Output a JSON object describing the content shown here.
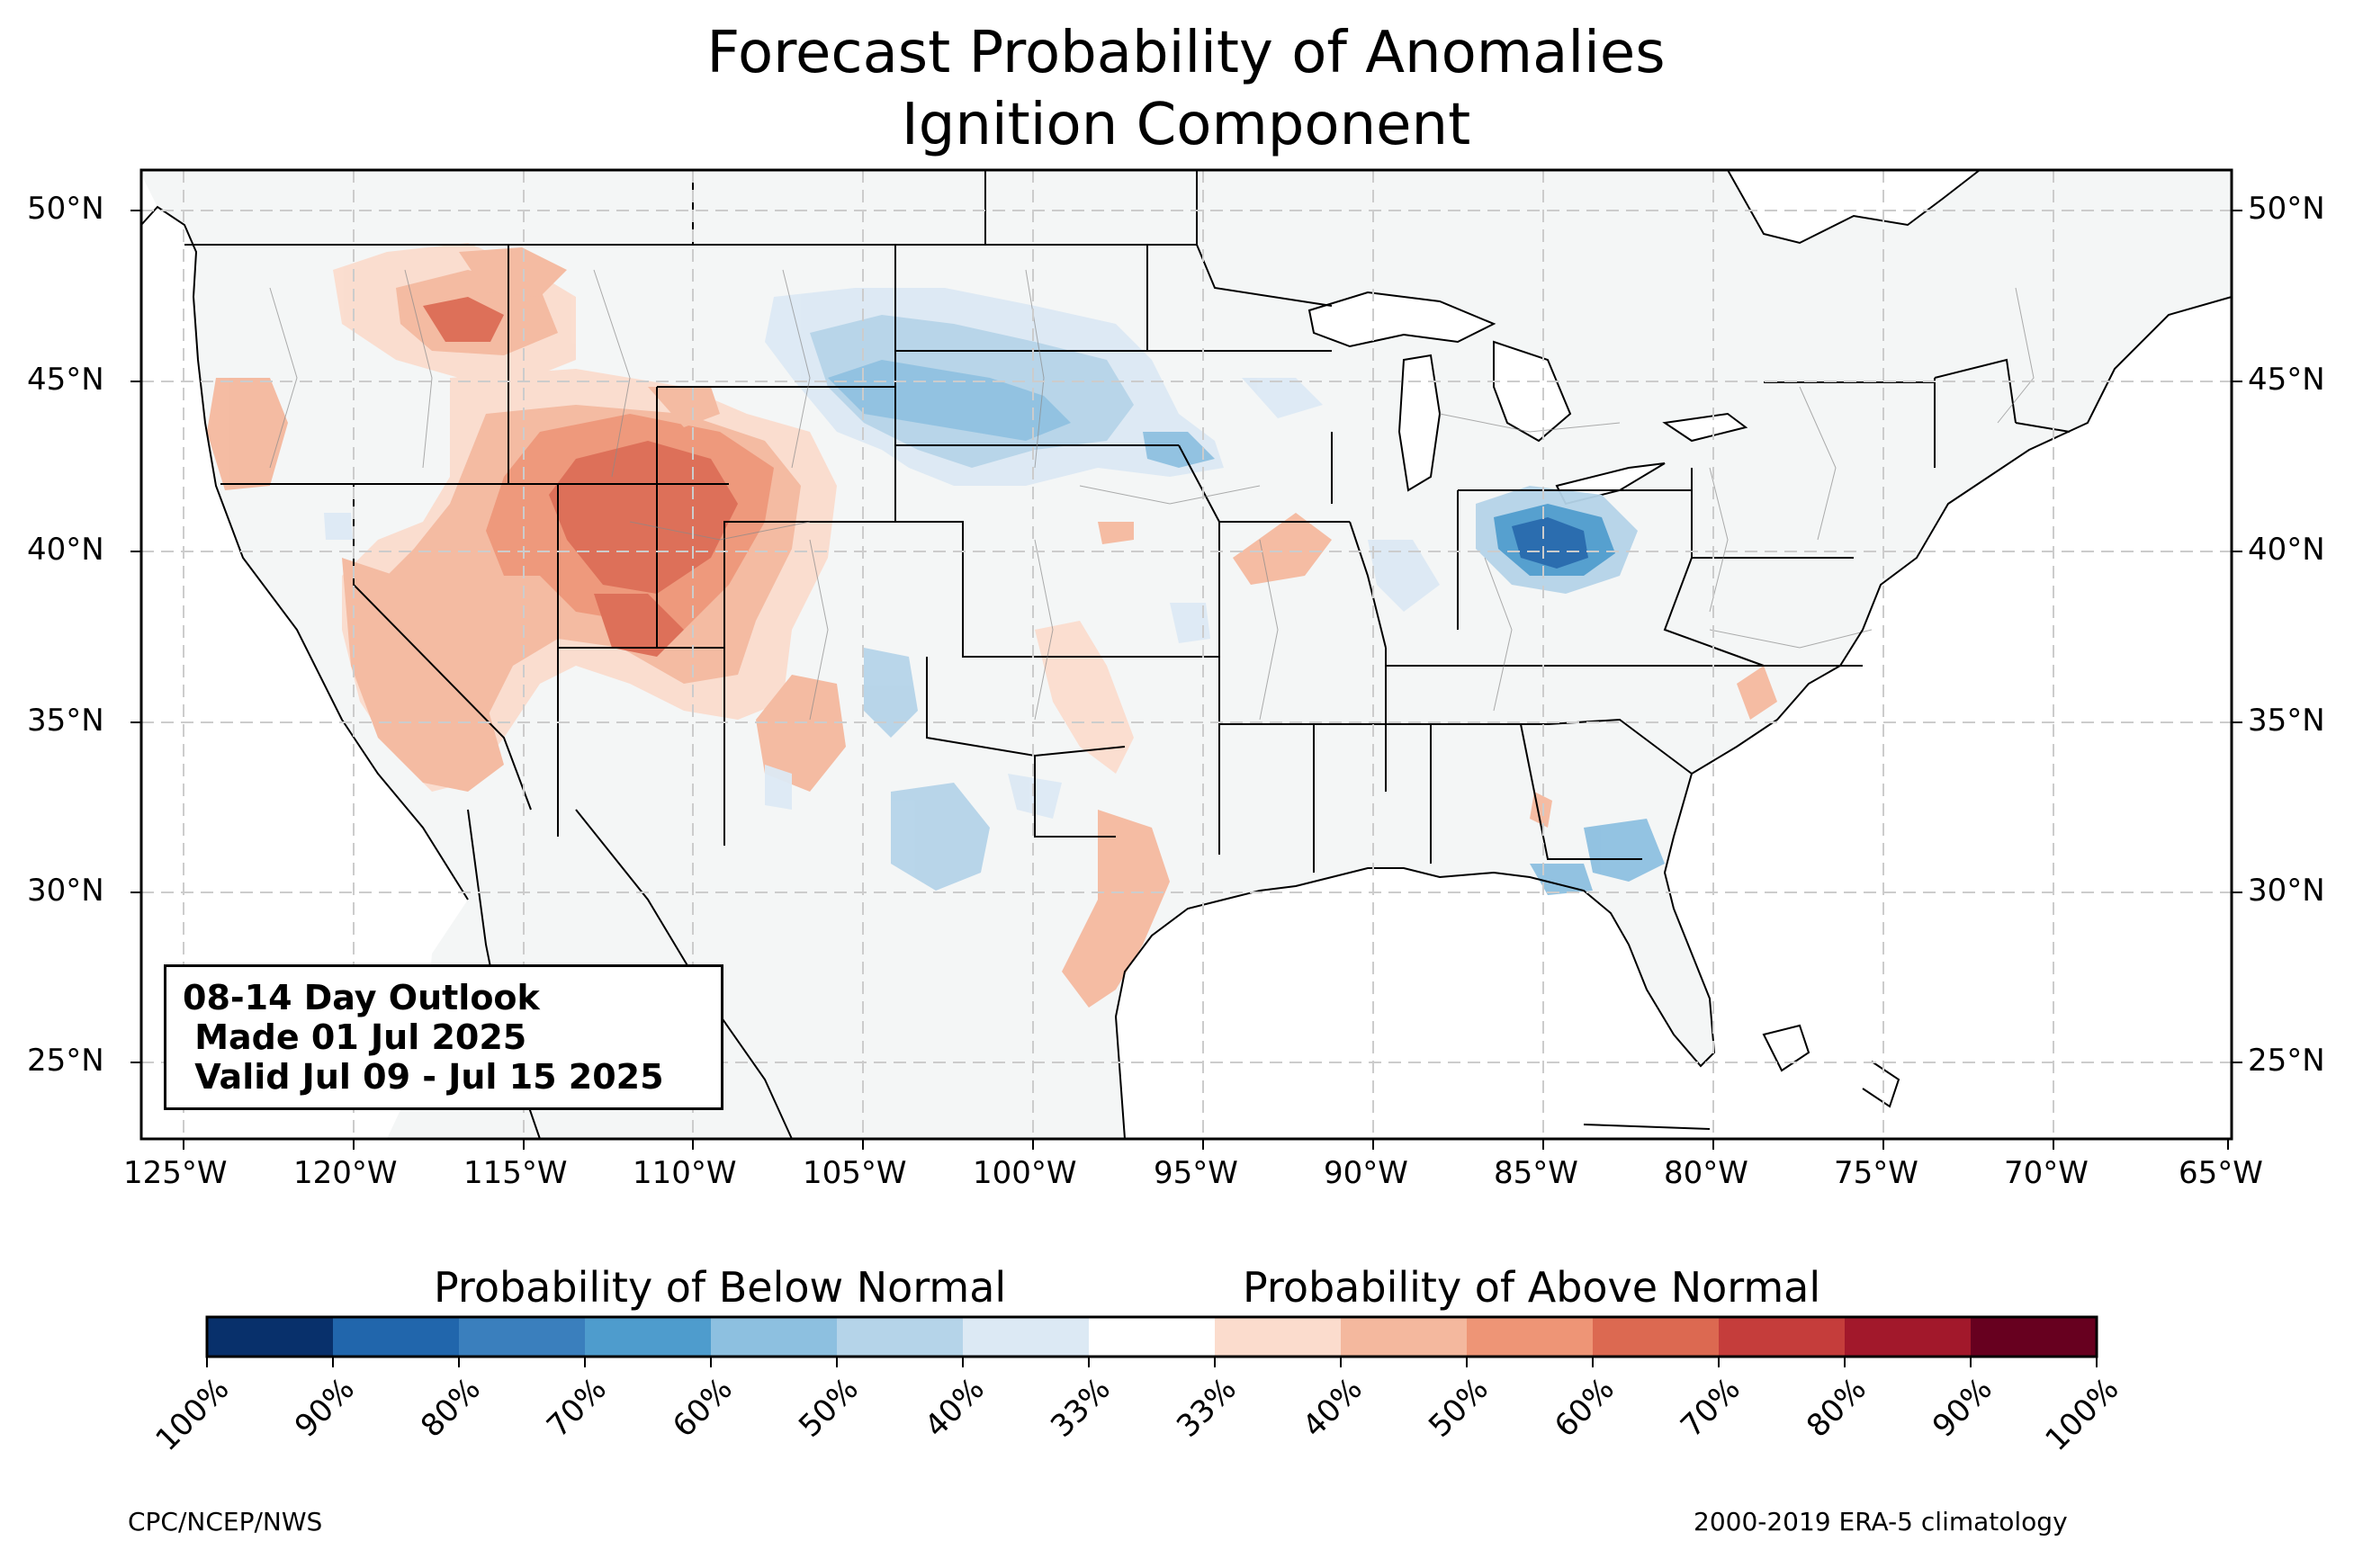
{
  "title": {
    "line1": "Forecast Probability of Anomalies",
    "line2": "Ignition Component"
  },
  "map": {
    "lon_ticks": [
      "125°W",
      "120°W",
      "115°W",
      "110°W",
      "105°W",
      "100°W",
      "95°W",
      "90°W",
      "85°W",
      "80°W",
      "75°W",
      "70°W",
      "65°W"
    ],
    "lat_ticks": [
      "50°N",
      "45°N",
      "40°N",
      "35°N",
      "30°N",
      "25°N"
    ],
    "colors": {
      "land": "#f4f6f6",
      "water": "#ffffff",
      "border": "#000000",
      "county": "#8a8a8a",
      "grid": "#cccccc"
    }
  },
  "outlook_box": {
    "line1": "08-14 Day Outlook",
    "line2": " Made 01 Jul 2025",
    "line3": " Valid Jul 09 - Jul 15 2025"
  },
  "colorbar": {
    "below_label": "Probability of Below Normal",
    "above_label": "Probability of Above Normal",
    "colors": [
      "#08306b",
      "#2166ac",
      "#3a7fbd",
      "#4e9ccd",
      "#8dc0e0",
      "#b5d4e9",
      "#dce9f4",
      "#ffffff",
      "#fbdccd",
      "#f4b89e",
      "#ee9576",
      "#dc6951",
      "#c53d3b",
      "#a2182b",
      "#67001f"
    ],
    "tick_labels": [
      "100%",
      "90%",
      "80%",
      "70%",
      "60%",
      "50%",
      "40%",
      "33%",
      "33%",
      "40%",
      "50%",
      "60%",
      "70%",
      "80%",
      "90%",
      "100%"
    ]
  },
  "footer": {
    "left": "CPC/NCEP/NWS",
    "right": "2000-2019 ERA-5 climatology"
  }
}
